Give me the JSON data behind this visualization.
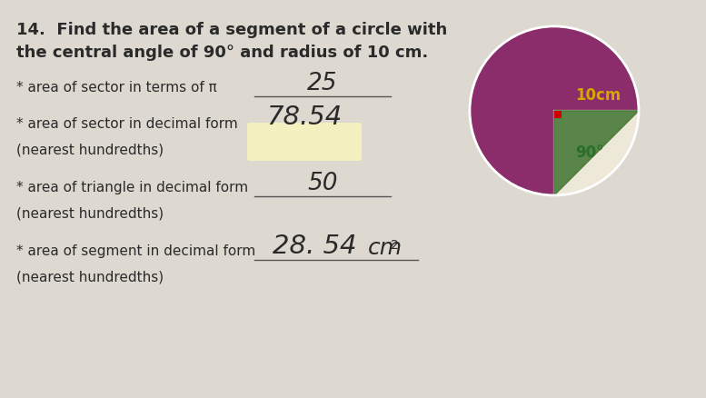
{
  "title_full": "14.  Find the area of a segment of a circle with\nthe central angle of 90° and radius of 10 cm.",
  "bullet1_label": "* area of sector in terms of π ",
  "bullet1_answer": "25",
  "bullet2_label": "* area of sector in decimal form ",
  "bullet2_sub": "(nearest hundredths)",
  "bullet2_answer": "78.54",
  "bullet3_label": "* area of triangle in decimal form ",
  "bullet3_sub": "(nearest hundredths)",
  "bullet3_answer": "50",
  "bullet4_label": "* area of segment in decimal form ",
  "bullet4_sub": "(nearest hundredths)",
  "bullet4_answer_main": "28. 54",
  "bullet4_answer_unit": "cm",
  "bullet4_answer_exp": "2",
  "bg_color": "#ddd9d0",
  "circle_color": "#8B2D6B",
  "sector_bg_color": "#ede8d8",
  "triangle_color": "#4a7a3a",
  "radius_label": "10cm",
  "angle_label": "90°",
  "radius_color": "#d4a800",
  "angle_color": "#2a6e2a",
  "right_angle_color": "#cc0000",
  "answer2_bg": "#f5f0c0",
  "text_color": "#2a2a2a",
  "font_size_title": 13,
  "font_size_body": 11,
  "font_size_answer": 17
}
